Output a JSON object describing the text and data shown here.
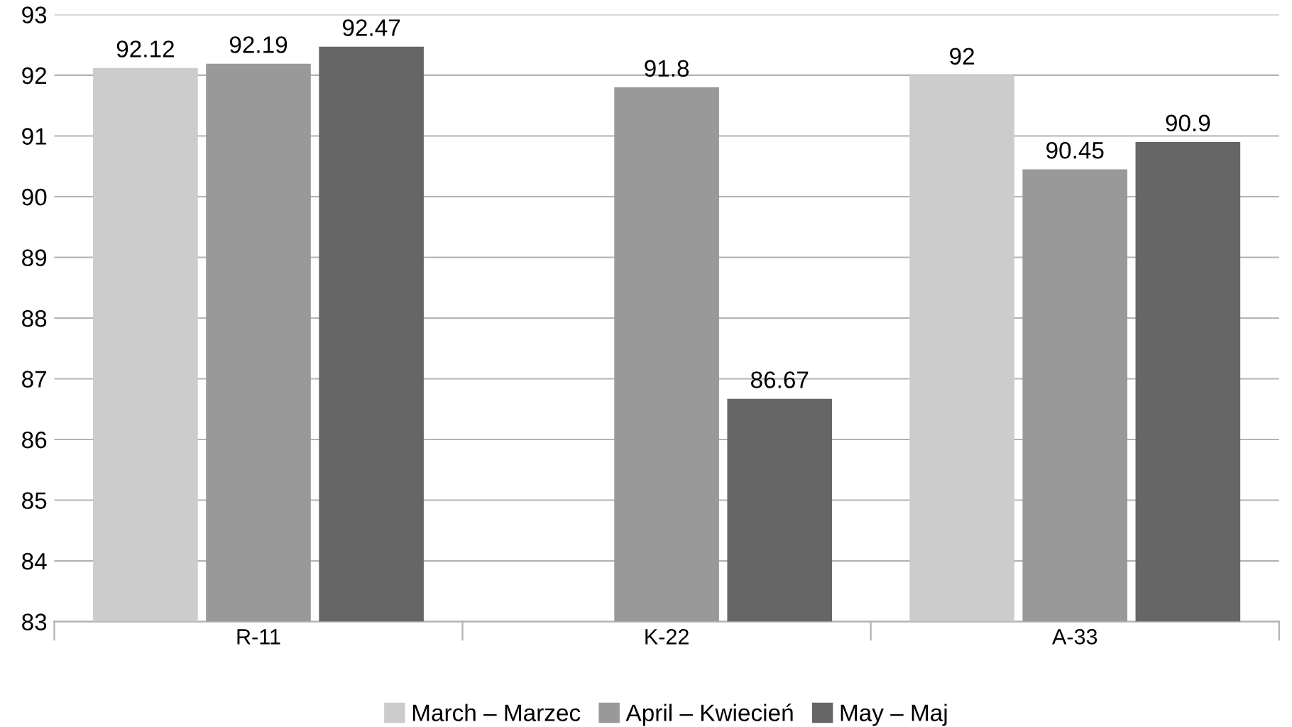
{
  "chart_data": {
    "type": "bar",
    "categories": [
      "R-11",
      "K-22",
      "A-33"
    ],
    "series": [
      {
        "name": "March – Marzec",
        "color": "#cccccc",
        "values": [
          92.12,
          null,
          92
        ]
      },
      {
        "name": "April – Kwiecień",
        "color": "#999999",
        "values": [
          92.19,
          91.8,
          90.45
        ]
      },
      {
        "name": "May – Maj",
        "color": "#666666",
        "values": [
          92.47,
          86.67,
          90.9
        ]
      }
    ],
    "ylim": [
      83,
      93
    ],
    "yticks": [
      83,
      84,
      85,
      86,
      87,
      88,
      89,
      90,
      91,
      92,
      93
    ],
    "grid": "y",
    "legend": "bottom",
    "data_labels": true
  }
}
